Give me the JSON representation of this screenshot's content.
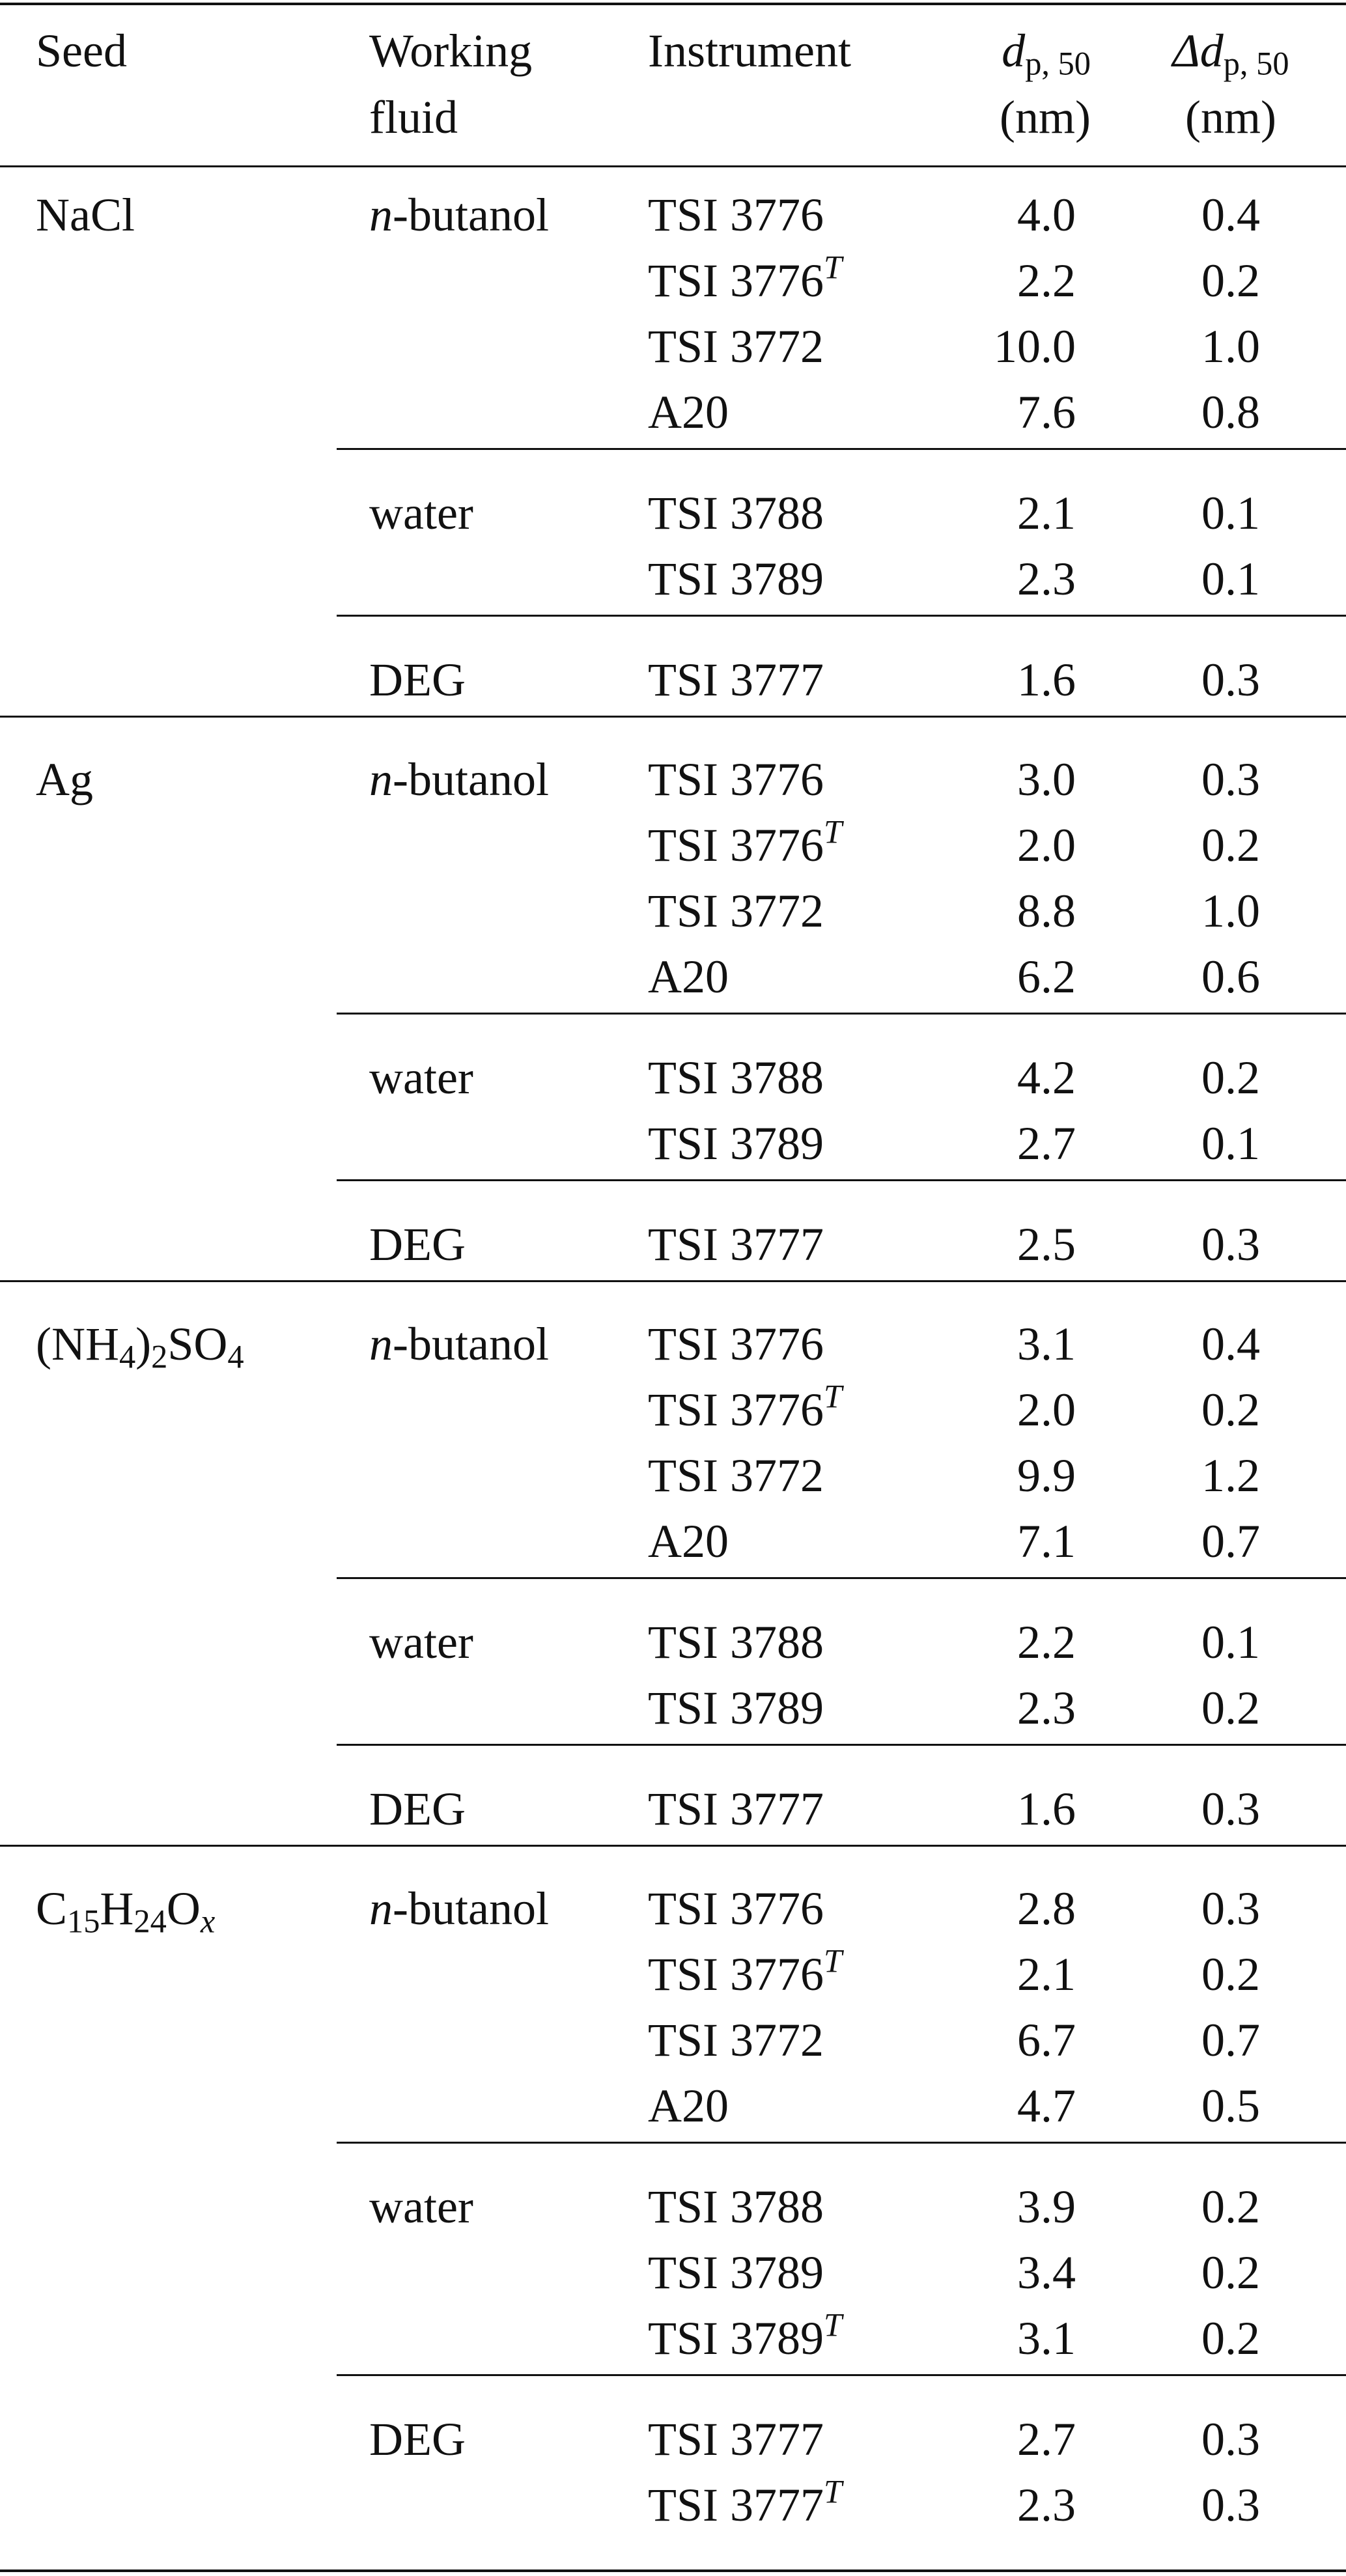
{
  "headers": {
    "seed": "Seed",
    "fluid_line1": "Working",
    "fluid_line2": "fluid",
    "instrument": "Instrument",
    "d50_symbol": "d",
    "d50_sub": "p, 50",
    "d50_unit": "(nm)",
    "dd50_symbol": "Δd",
    "dd50_sub": "p, 50",
    "dd50_unit": "(nm)"
  },
  "seeds": [
    {
      "seed_parts": [
        {
          "t": "NaCl",
          "s": ""
        }
      ],
      "groups": [
        {
          "fluid_italic": "n",
          "fluid_rest": "-butanol",
          "rows": [
            {
              "instrument": "TSI 3776",
              "sup": "",
              "d50": "4.0",
              "dd50": "0.4"
            },
            {
              "instrument": "TSI 3776",
              "sup": "T",
              "d50": "2.2",
              "dd50": "0.2"
            },
            {
              "instrument": "TSI 3772",
              "sup": "",
              "d50": "10.0",
              "dd50": "1.0"
            },
            {
              "instrument": "A20",
              "sup": "",
              "d50": "7.6",
              "dd50": "0.8"
            }
          ]
        },
        {
          "fluid_italic": "",
          "fluid_rest": "water",
          "rows": [
            {
              "instrument": "TSI 3788",
              "sup": "",
              "d50": "2.1",
              "dd50": "0.1"
            },
            {
              "instrument": "TSI 3789",
              "sup": "",
              "d50": "2.3",
              "dd50": "0.1"
            }
          ]
        },
        {
          "fluid_italic": "",
          "fluid_rest": "DEG",
          "rows": [
            {
              "instrument": "TSI 3777",
              "sup": "",
              "d50": "1.6",
              "dd50": "0.3"
            }
          ]
        }
      ]
    },
    {
      "seed_parts": [
        {
          "t": "Ag",
          "s": ""
        }
      ],
      "groups": [
        {
          "fluid_italic": "n",
          "fluid_rest": "-butanol",
          "rows": [
            {
              "instrument": "TSI 3776",
              "sup": "",
              "d50": "3.0",
              "dd50": "0.3"
            },
            {
              "instrument": "TSI 3776",
              "sup": "T",
              "d50": "2.0",
              "dd50": "0.2"
            },
            {
              "instrument": "TSI 3772",
              "sup": "",
              "d50": "8.8",
              "dd50": "1.0"
            },
            {
              "instrument": "A20",
              "sup": "",
              "d50": "6.2",
              "dd50": "0.6"
            }
          ]
        },
        {
          "fluid_italic": "",
          "fluid_rest": "water",
          "rows": [
            {
              "instrument": "TSI 3788",
              "sup": "",
              "d50": "4.2",
              "dd50": "0.2"
            },
            {
              "instrument": "TSI 3789",
              "sup": "",
              "d50": "2.7",
              "dd50": "0.1"
            }
          ]
        },
        {
          "fluid_italic": "",
          "fluid_rest": "DEG",
          "rows": [
            {
              "instrument": "TSI 3777",
              "sup": "",
              "d50": "2.5",
              "dd50": "0.3"
            }
          ]
        }
      ]
    },
    {
      "seed_parts": [
        {
          "t": "(NH",
          "s": "4"
        },
        {
          "t": ")",
          "s": "2"
        },
        {
          "t": "SO",
          "s": "4"
        }
      ],
      "groups": [
        {
          "fluid_italic": "n",
          "fluid_rest": "-butanol",
          "rows": [
            {
              "instrument": "TSI 3776",
              "sup": "",
              "d50": "3.1",
              "dd50": "0.4"
            },
            {
              "instrument": "TSI 3776",
              "sup": "T",
              "d50": "2.0",
              "dd50": "0.2"
            },
            {
              "instrument": "TSI 3772",
              "sup": "",
              "d50": "9.9",
              "dd50": "1.2"
            },
            {
              "instrument": "A20",
              "sup": "",
              "d50": "7.1",
              "dd50": "0.7"
            }
          ]
        },
        {
          "fluid_italic": "",
          "fluid_rest": "water",
          "rows": [
            {
              "instrument": "TSI 3788",
              "sup": "",
              "d50": "2.2",
              "dd50": "0.1"
            },
            {
              "instrument": "TSI 3789",
              "sup": "",
              "d50": "2.3",
              "dd50": "0.2"
            }
          ]
        },
        {
          "fluid_italic": "",
          "fluid_rest": "DEG",
          "rows": [
            {
              "instrument": "TSI 3777",
              "sup": "",
              "d50": "1.6",
              "dd50": "0.3"
            }
          ]
        }
      ]
    },
    {
      "seed_parts": [
        {
          "t": "C",
          "s": "15"
        },
        {
          "t": "H",
          "s": "24"
        },
        {
          "t": "O",
          "s": "x",
          "si": true
        }
      ],
      "groups": [
        {
          "fluid_italic": "n",
          "fluid_rest": "-butanol",
          "rows": [
            {
              "instrument": "TSI 3776",
              "sup": "",
              "d50": "2.8",
              "dd50": "0.3"
            },
            {
              "instrument": "TSI 3776",
              "sup": "T",
              "d50": "2.1",
              "dd50": "0.2"
            },
            {
              "instrument": "TSI 3772",
              "sup": "",
              "d50": "6.7",
              "dd50": "0.7"
            },
            {
              "instrument": "A20",
              "sup": "",
              "d50": "4.7",
              "dd50": "0.5"
            }
          ]
        },
        {
          "fluid_italic": "",
          "fluid_rest": "water",
          "rows": [
            {
              "instrument": "TSI 3788",
              "sup": "",
              "d50": "3.9",
              "dd50": "0.2"
            },
            {
              "instrument": "TSI 3789",
              "sup": "",
              "d50": "3.4",
              "dd50": "0.2"
            },
            {
              "instrument": "TSI 3789",
              "sup": "T",
              "d50": "3.1",
              "dd50": "0.2"
            }
          ]
        },
        {
          "fluid_italic": "",
          "fluid_rest": "DEG",
          "rows": [
            {
              "instrument": "TSI 3777",
              "sup": "",
              "d50": "2.7",
              "dd50": "0.3"
            },
            {
              "instrument": "TSI 3777",
              "sup": "T",
              "d50": "2.3",
              "dd50": "0.3"
            }
          ]
        }
      ]
    }
  ]
}
